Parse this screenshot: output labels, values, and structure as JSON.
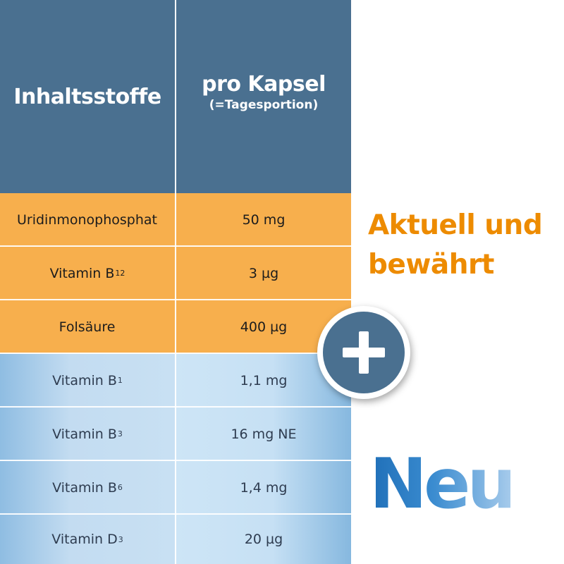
{
  "header": {
    "col1": "Inhaltsstoffe",
    "col2_title": "pro Kapsel",
    "col2_sub": "(=Tagesportion)"
  },
  "rows": [
    {
      "name": "Uridinmonophosphat",
      "sub": "",
      "amount": "50 mg",
      "group": "aktuell"
    },
    {
      "name": "Vitamin B",
      "sub": "12",
      "amount": "3 µg",
      "group": "aktuell"
    },
    {
      "name": "Folsäure",
      "sub": "",
      "amount": "400 µg",
      "group": "aktuell"
    },
    {
      "name": "Vitamin B",
      "sub": "1",
      "amount": "1,1 mg",
      "group": "neu"
    },
    {
      "name": "Vitamin B",
      "sub": "3",
      "amount": "16 mg NE",
      "group": "neu"
    },
    {
      "name": "Vitamin B",
      "sub": "6",
      "amount": "1,4 mg",
      "group": "neu"
    },
    {
      "name": "Vitamin D",
      "sub": "3",
      "amount": "20 µg",
      "group": "neu"
    }
  ],
  "labels": {
    "aktuell_line1": "Aktuell und",
    "aktuell_line2": "bewährt",
    "neu": "Neu"
  },
  "badge": {
    "icon": "plus-icon"
  },
  "colors": {
    "header": "#4a7090",
    "orange_rows": "#f7af4d",
    "blue_rows": "#c6e0f4",
    "aktuell_text": "#ed8b00",
    "neu_text": "#1f6fb8"
  }
}
